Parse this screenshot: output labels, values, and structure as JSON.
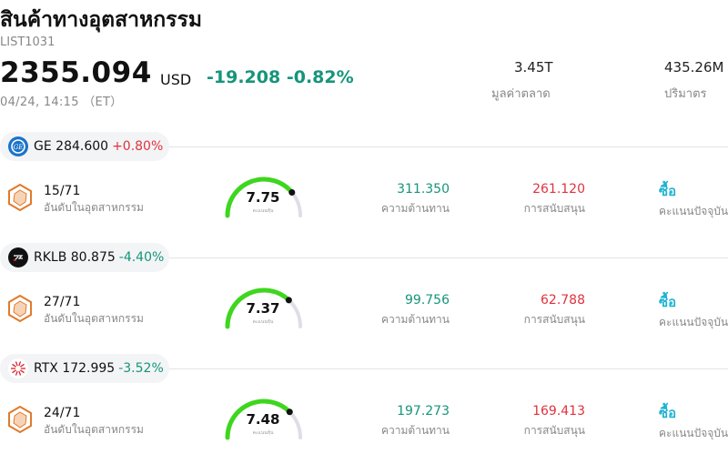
{
  "header": {
    "title": "สินค้าทางอุตสาหกรรม",
    "code": "LIST1031",
    "price": "2355.094",
    "currency": "USD",
    "change": "-19.208",
    "change_pct": "-0.82%",
    "time": "04/24, 14:15 （ET）"
  },
  "stats": [
    {
      "value": "3.45T",
      "label": "มูลค่าตลาด"
    },
    {
      "value": "435.26M",
      "label": "ปริมาตร"
    }
  ],
  "stocks": [
    {
      "symbol": "GE",
      "price": "284.600",
      "pct": "+0.80%",
      "direction": "up",
      "logo_icon": "ge-logo-icon",
      "rank": "15/71",
      "rank_label": "อันดับในอุตสาหกรรม",
      "score": "7.75",
      "score_label": "คะแนนหุ้น",
      "score_fraction": 0.78,
      "resistance": "311.350",
      "resistance_label": "ความต้านทาน",
      "support": "261.120",
      "support_label": "การสนับสนุน",
      "rating": "ซื้อ",
      "rating_label": "คะแนนปัจจุบัน"
    },
    {
      "symbol": "RKLB",
      "price": "80.875",
      "pct": "-4.40%",
      "direction": "down",
      "logo_icon": "rocket-lab-logo-icon",
      "rank": "27/71",
      "rank_label": "อันดับในอุตสาหกรรม",
      "score": "7.37",
      "score_label": "คะแนนหุ้น",
      "score_fraction": 0.74,
      "resistance": "99.756",
      "resistance_label": "ความต้านทาน",
      "support": "62.788",
      "support_label": "การสนับสนุน",
      "rating": "ซื้อ",
      "rating_label": "คะแนนปัจจุบัน"
    },
    {
      "symbol": "RTX",
      "price": "172.995",
      "pct": "-3.52%",
      "direction": "down",
      "logo_icon": "rtx-logo-icon",
      "rank": "24/71",
      "rank_label": "อันดับในอุตสาหกรรม",
      "score": "7.48",
      "score_label": "คะแนนหุ้น",
      "score_fraction": 0.75,
      "resistance": "197.273",
      "resistance_label": "ความต้านทาน",
      "support": "169.413",
      "support_label": "การสนับสนุน",
      "rating": "ซื้อ",
      "rating_label": "คะแนนปัจจุบัน"
    }
  ],
  "colors": {
    "up": "#e0323e",
    "down": "#15957a",
    "gauge_fill": "#3ed61e",
    "gauge_track": "#dedee8",
    "rating": "#1fb2d3",
    "hex": "#e07a2c"
  }
}
